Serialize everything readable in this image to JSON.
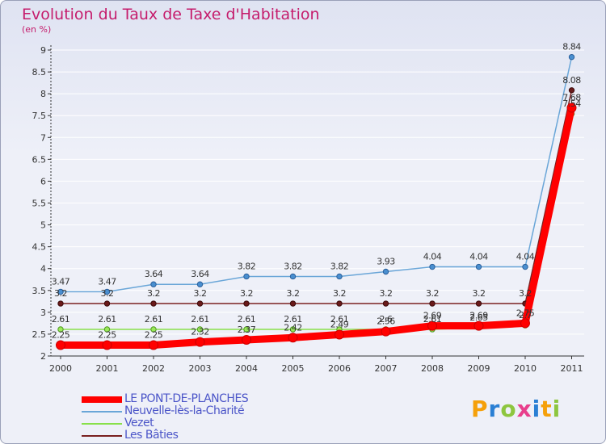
{
  "chart_data": {
    "type": "line",
    "title": "Evolution du Taux de Taxe d'Habitation",
    "subtitle": "(en %)",
    "xlabel": "",
    "ylabel": "",
    "ylim": [
      2,
      9
    ],
    "yticks": [
      "2",
      "2.5",
      "3",
      "3.5",
      "4",
      "4.5",
      "5",
      "5.5",
      "6",
      "6.5",
      "7",
      "7.5",
      "8",
      "8.5",
      "9"
    ],
    "x": [
      "2000",
      "2001",
      "2002",
      "2003",
      "2004",
      "2005",
      "2006",
      "2007",
      "2008",
      "2009",
      "2010",
      "2011"
    ],
    "series": [
      {
        "name": "LE PONT-DE-PLANCHES",
        "color": "#ff0000",
        "values": [
          2.25,
          2.25,
          2.25,
          2.32,
          2.37,
          2.42,
          2.49,
          2.56,
          2.69,
          2.69,
          2.75,
          7.68
        ],
        "labels": [
          "2.25",
          "2.25",
          "2.25",
          "2.32",
          "2.37",
          "2.42",
          "2.49",
          "2.56",
          "2.69",
          "2.69",
          "2.75",
          "7.68"
        ]
      },
      {
        "name": "Neuvelle-lès-la-Charité",
        "color": "#6aa6d8",
        "values": [
          3.47,
          3.47,
          3.64,
          3.64,
          3.82,
          3.82,
          3.82,
          3.93,
          4.04,
          4.04,
          4.04,
          8.84
        ],
        "labels": [
          "3.47",
          "3.47",
          "3.64",
          "3.64",
          "3.82",
          "3.82",
          "3.82",
          "3.93",
          "4.04",
          "4.04",
          "4.04",
          "8.84"
        ]
      },
      {
        "name": "Vezet",
        "color": "#88e04a",
        "values": [
          2.61,
          2.61,
          2.61,
          2.61,
          2.61,
          2.61,
          2.61,
          2.61,
          2.61,
          2.65,
          2.7,
          7.54
        ],
        "labels": [
          "2.61",
          "2.61",
          "2.61",
          "2.61",
          "2.61",
          "2.61",
          "2.61",
          "2.6",
          "2.61",
          "2.65",
          "2.7",
          "7.54"
        ]
      },
      {
        "name": "Les Bâties",
        "color": "#7a2020",
        "values": [
          3.2,
          3.2,
          3.2,
          3.2,
          3.2,
          3.2,
          3.2,
          3.2,
          3.2,
          3.2,
          3.2,
          8.08
        ],
        "labels": [
          "3.2",
          "3.2",
          "3.2",
          "3.2",
          "3.2",
          "3.2",
          "3.2",
          "3.2",
          "3.2",
          "3.2",
          "3.2",
          "8.08"
        ]
      }
    ],
    "legend_position": "bottom-left"
  },
  "logo": {
    "letters": [
      "P",
      "r",
      "o",
      "x",
      "i",
      "t",
      "i"
    ],
    "colors": [
      "#f5a00a",
      "#2a7fd4",
      "#8dc63f",
      "#e83e8c",
      "#2a7fd4",
      "#f5a00a",
      "#8dc63f"
    ]
  }
}
